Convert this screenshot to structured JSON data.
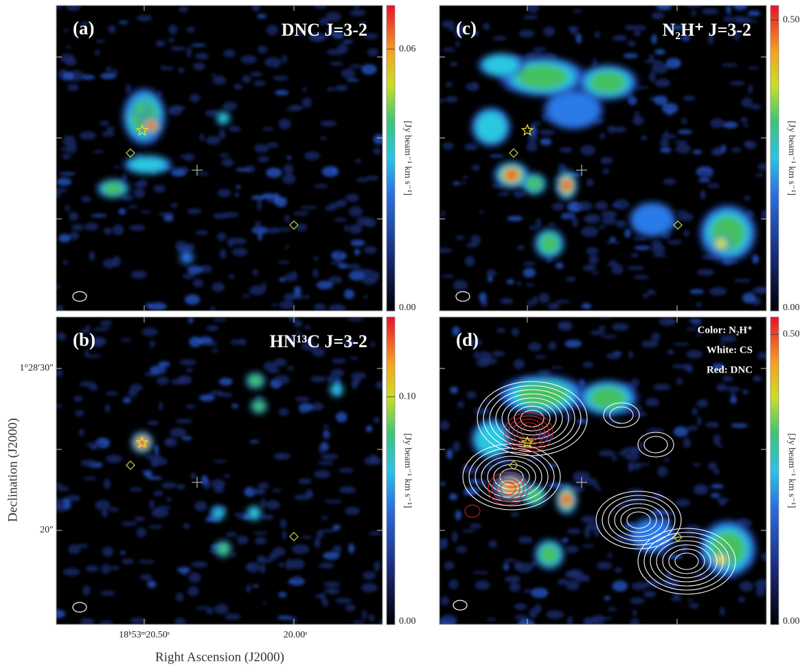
{
  "chart_data": [
    {
      "type": "heatmap",
      "title": "(a)",
      "label": "DNC J=3-2",
      "colorbar_label": "[Jy beam⁻¹ km s⁻¹]",
      "ylim": [
        0,
        0.07
      ],
      "yticks": [
        {
          "value": 0,
          "label": "0.00"
        },
        {
          "value": 0.06,
          "label": "0.06"
        }
      ]
    },
    {
      "type": "heatmap",
      "title": "(b)",
      "label": "HN¹³C J=3-2",
      "colorbar_label": "[Jy beam⁻¹ km s⁻¹]",
      "ylim": [
        0,
        0.135
      ],
      "yticks": [
        {
          "value": 0,
          "label": "0.00"
        },
        {
          "value": 0.1,
          "label": "0.10"
        }
      ],
      "x_label": "Right Ascension (J2000)",
      "y_label": "Declination (J2000)",
      "xtick_labels": [
        "18ʰ53ᵐ20.50ˢ",
        "20.00ˢ"
      ],
      "ytick_labels": [
        "1°28′30″",
        "20″"
      ]
    },
    {
      "type": "heatmap",
      "title": "(c)",
      "label": "N₂H⁺ J=3-2",
      "colorbar_label": "[Jy beam⁻¹ km s⁻¹]",
      "ylim": [
        0,
        0.525
      ],
      "yticks": [
        {
          "value": 0,
          "label": "0.00"
        },
        {
          "value": 0.5,
          "label": "0.50"
        }
      ]
    },
    {
      "type": "heatmap",
      "title": "(d)",
      "colorbar_label": "[Jy beam⁻¹ km s⁻¹]",
      "annotations": [
        "Color: N₂H⁺",
        "White: CS",
        "Red: DNC"
      ],
      "ylim": [
        0,
        0.53
      ],
      "yticks": [
        {
          "value": 0,
          "label": "0.00"
        },
        {
          "value": 0.5,
          "label": "0.50"
        }
      ]
    }
  ]
}
